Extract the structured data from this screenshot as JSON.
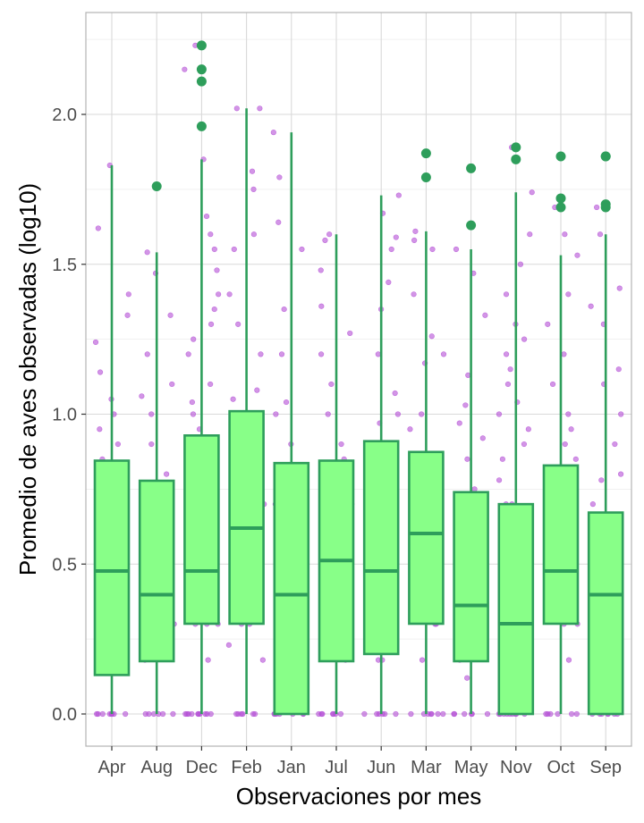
{
  "chart_data": {
    "type": "box",
    "xlabel": "Observaciones por mes",
    "ylabel": "Promedio de aves observadas (log10)",
    "categories": [
      "Apr",
      "Aug",
      "Dec",
      "Feb",
      "Jan",
      "Jul",
      "Jun",
      "Mar",
      "May",
      "Nov",
      "Oct",
      "Sep"
    ],
    "ylim": [
      -0.11,
      2.35
    ],
    "yticks": [
      0.0,
      0.5,
      1.0,
      1.5,
      2.0
    ],
    "ytick_labels": [
      "0.0",
      "0.5",
      "1.0",
      "1.5",
      "2.0"
    ],
    "grid": true,
    "boxes": [
      {
        "category": "Apr",
        "whisker_low": 0.0,
        "q1": 0.13,
        "median": 0.477,
        "q3": 0.845,
        "whisker_high": 1.83,
        "outliers": []
      },
      {
        "category": "Aug",
        "whisker_low": 0.0,
        "q1": 0.176,
        "median": 0.398,
        "q3": 0.778,
        "whisker_high": 1.54,
        "outliers": [
          1.76
        ]
      },
      {
        "category": "Dec",
        "whisker_low": 0.0,
        "q1": 0.301,
        "median": 0.477,
        "q3": 0.929,
        "whisker_high": 1.85,
        "outliers": [
          1.96,
          2.11,
          2.15,
          2.23
        ]
      },
      {
        "category": "Feb",
        "whisker_low": 0.0,
        "q1": 0.301,
        "median": 0.62,
        "q3": 1.01,
        "whisker_high": 2.02,
        "outliers": []
      },
      {
        "category": "Jan",
        "whisker_low": 0.0,
        "q1": 0.0,
        "median": 0.398,
        "q3": 0.837,
        "whisker_high": 1.94,
        "outliers": []
      },
      {
        "category": "Jul",
        "whisker_low": 0.0,
        "q1": 0.176,
        "median": 0.512,
        "q3": 0.845,
        "whisker_high": 1.6,
        "outliers": []
      },
      {
        "category": "Jun",
        "whisker_low": 0.0,
        "q1": 0.2,
        "median": 0.477,
        "q3": 0.91,
        "whisker_high": 1.73,
        "outliers": []
      },
      {
        "category": "Mar",
        "whisker_low": 0.0,
        "q1": 0.301,
        "median": 0.602,
        "q3": 0.874,
        "whisker_high": 1.61,
        "outliers": [
          1.79,
          1.87
        ]
      },
      {
        "category": "May",
        "whisker_low": 0.0,
        "q1": 0.176,
        "median": 0.362,
        "q3": 0.74,
        "whisker_high": 1.55,
        "outliers": [
          1.63,
          1.82
        ]
      },
      {
        "category": "Nov",
        "whisker_low": 0.0,
        "q1": 0.0,
        "median": 0.301,
        "q3": 0.7,
        "whisker_high": 1.74,
        "outliers": [
          1.85,
          1.89
        ]
      },
      {
        "category": "Oct",
        "whisker_low": 0.0,
        "q1": 0.301,
        "median": 0.477,
        "q3": 0.829,
        "whisker_high": 1.53,
        "outliers": [
          1.69,
          1.72,
          1.86
        ]
      },
      {
        "category": "Sep",
        "whisker_low": 0.0,
        "q1": 0.0,
        "median": 0.398,
        "q3": 0.672,
        "whisker_high": 1.6,
        "outliers": [
          1.69,
          1.7,
          1.86,
          1.86
        ]
      }
    ],
    "jitter_points": [
      {
        "category": "Apr",
        "values": [
          0,
          0,
          0,
          0,
          0,
          0,
          0,
          0,
          0.3,
          0.3,
          0.48,
          0.48,
          0.6,
          0.7,
          0.78,
          0.85,
          0.9,
          0.95,
          1.0,
          1.05,
          1.14,
          1.24,
          1.33,
          1.4,
          1.62,
          1.83
        ]
      },
      {
        "category": "Aug",
        "values": [
          0,
          0,
          0,
          0,
          0,
          0,
          0.18,
          0.3,
          0.3,
          0.4,
          0.48,
          0.6,
          0.7,
          0.8,
          0.9,
          1.0,
          1.06,
          1.1,
          1.2,
          1.33,
          1.47,
          1.54
        ]
      },
      {
        "category": "Dec",
        "values": [
          0,
          0,
          0,
          0,
          0,
          0,
          0,
          0,
          0,
          0,
          0.18,
          0.3,
          0.3,
          0.3,
          0.48,
          0.6,
          0.7,
          0.78,
          0.9,
          0.95,
          1.0,
          1.04,
          1.1,
          1.2,
          1.25,
          1.3,
          1.35,
          1.4,
          1.48,
          1.55,
          1.6,
          1.66,
          1.85,
          2.15,
          2.23
        ]
      },
      {
        "category": "Feb",
        "values": [
          0,
          0,
          0,
          0,
          0,
          0,
          0.18,
          0.23,
          0.3,
          0.3,
          0.48,
          0.6,
          0.7,
          0.8,
          0.9,
          0.95,
          1.0,
          1.05,
          1.08,
          1.2,
          1.3,
          1.4,
          1.55,
          1.6,
          1.75,
          1.81,
          2.02,
          2.02
        ]
      },
      {
        "category": "Jan",
        "values": [
          0,
          0,
          0,
          0,
          0,
          0,
          0,
          0.3,
          0.48,
          0.6,
          0.7,
          0.8,
          0.9,
          1.0,
          1.04,
          1.2,
          1.35,
          1.55,
          1.64,
          1.79,
          1.94
        ]
      },
      {
        "category": "Jul",
        "values": [
          0,
          0,
          0,
          0,
          0,
          0,
          0,
          0.18,
          0.3,
          0.48,
          0.6,
          0.7,
          0.85,
          0.9,
          1.0,
          1.1,
          1.2,
          1.27,
          1.36,
          1.48,
          1.58,
          1.6
        ]
      },
      {
        "category": "Jun",
        "values": [
          0,
          0,
          0,
          0,
          0,
          0,
          0.18,
          0.18,
          0.3,
          0.48,
          0.6,
          0.7,
          0.8,
          0.9,
          0.97,
          1.0,
          1.07,
          1.2,
          1.35,
          1.44,
          1.55,
          1.59,
          1.67,
          1.73
        ]
      },
      {
        "category": "Mar",
        "values": [
          0,
          0,
          0,
          0,
          0,
          0,
          0,
          0.18,
          0.3,
          0.3,
          0.48,
          0.6,
          0.7,
          0.85,
          0.95,
          1.0,
          1.17,
          1.2,
          1.26,
          1.4,
          1.55,
          1.58,
          1.61
        ]
      },
      {
        "category": "May",
        "values": [
          0,
          0,
          0,
          0,
          0,
          0,
          0.12,
          0.18,
          0.3,
          0.36,
          0.5,
          0.6,
          0.7,
          0.75,
          0.85,
          0.92,
          0.97,
          1.03,
          1.13,
          1.33,
          1.47,
          1.55
        ]
      },
      {
        "category": "Nov",
        "values": [
          0,
          0,
          0,
          0,
          0,
          0,
          0,
          0,
          0,
          0.18,
          0.3,
          0.3,
          0.48,
          0.6,
          0.7,
          0.7,
          0.78,
          0.85,
          0.9,
          0.95,
          1.0,
          1.04,
          1.1,
          1.15,
          1.2,
          1.25,
          1.3,
          1.4,
          1.5,
          1.6,
          1.74,
          1.89
        ]
      },
      {
        "category": "Oct",
        "values": [
          0,
          0,
          0,
          0,
          0,
          0,
          0.18,
          0.3,
          0.3,
          0.48,
          0.6,
          0.7,
          0.78,
          0.85,
          0.9,
          0.95,
          1.0,
          1.1,
          1.2,
          1.3,
          1.4,
          1.53,
          1.6,
          1.69
        ]
      },
      {
        "category": "Sep",
        "values": [
          0,
          0,
          0,
          0,
          0,
          0,
          0,
          0.18,
          0.3,
          0.4,
          0.48,
          0.6,
          0.7,
          0.78,
          0.8,
          0.9,
          1.0,
          1.1,
          1.15,
          1.3,
          1.36,
          1.42,
          1.6,
          1.69
        ]
      }
    ],
    "colors": {
      "box_fill": "#88ff88",
      "box_stroke": "#2e9e5b",
      "outlier": "#2e9e5b",
      "jitter": "#b44fd6",
      "grid_major": "#d9d9d9",
      "grid_minor": "#ececec",
      "panel_border": "#b3b3b3"
    }
  }
}
